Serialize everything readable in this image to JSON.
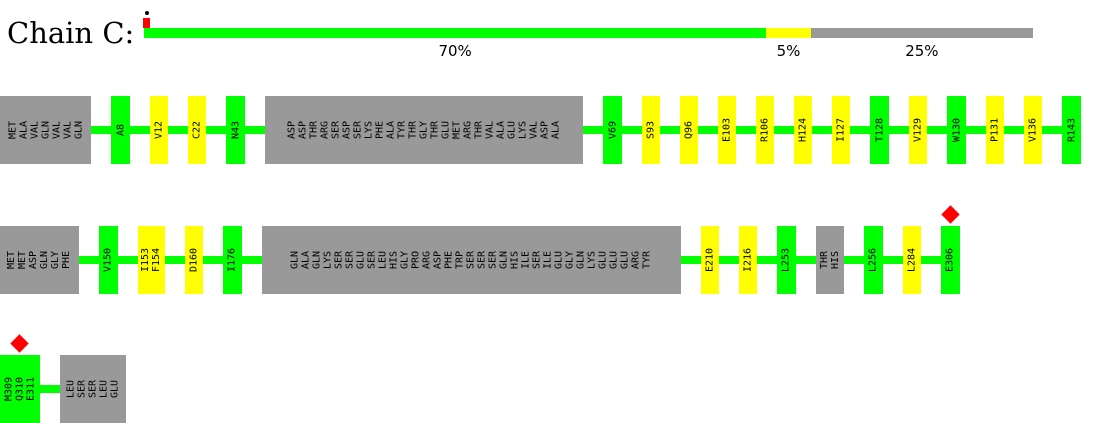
{
  "chain": {
    "label": "Chain C:",
    "summary": [
      {
        "key": "green",
        "fraction": 0.7,
        "label": "70%",
        "color": "#00ff00"
      },
      {
        "key": "yellow",
        "fraction": 0.05,
        "label": "5%",
        "color": "#ffff00"
      },
      {
        "key": "gray",
        "fraction": 0.25,
        "label": "25%",
        "color": "#999999"
      }
    ]
  },
  "colors": {
    "green": "#00ff00",
    "yellow": "#ffff00",
    "gray": "#999999",
    "marker": "#ff0000"
  },
  "rows": [
    {
      "groups": [
        {
          "type": "gray",
          "residues": [
            "MET",
            "ALA",
            "VAL",
            "GLN",
            "VAL",
            "VAL",
            "GLN"
          ]
        },
        {
          "type": "green",
          "residues": [
            "A8"
          ]
        },
        {
          "type": "yellow",
          "residues": [
            "V12"
          ]
        },
        {
          "type": "yellow",
          "residues": [
            "C22"
          ]
        },
        {
          "type": "green",
          "residues": [
            "N43"
          ]
        },
        {
          "type": "gray",
          "residues": [
            "ASP",
            "ASP",
            "THR",
            "ARG",
            "SER",
            "ASP",
            "SER",
            "LYS",
            "PHE",
            "ALA",
            "TYR",
            "THR",
            "GLY",
            "THR",
            "GLU",
            "MET",
            "ARG",
            "THR",
            "VAL",
            "ALA",
            "GLU",
            "LYS",
            "VAL",
            "ASP",
            "ALA"
          ]
        },
        {
          "type": "green",
          "residues": [
            "V69"
          ]
        },
        {
          "type": "yellow",
          "residues": [
            "S93"
          ]
        },
        {
          "type": "yellow",
          "residues": [
            "Q96"
          ]
        },
        {
          "type": "yellow",
          "residues": [
            "E103"
          ]
        },
        {
          "type": "yellow",
          "residues": [
            "R106"
          ]
        },
        {
          "type": "yellow",
          "residues": [
            "H124"
          ]
        },
        {
          "type": "yellow",
          "residues": [
            "I127"
          ]
        },
        {
          "type": "green",
          "residues": [
            "T128"
          ]
        },
        {
          "type": "yellow",
          "residues": [
            "V129"
          ]
        },
        {
          "type": "green",
          "residues": [
            "W130"
          ]
        },
        {
          "type": "yellow",
          "residues": [
            "P131"
          ]
        },
        {
          "type": "yellow",
          "residues": [
            "V136"
          ]
        },
        {
          "type": "green",
          "residues": [
            "R143"
          ]
        }
      ]
    },
    {
      "groups": [
        {
          "type": "gray",
          "residues": [
            "MET",
            "MET",
            "ASP",
            "GLN",
            "GLY",
            "PHE"
          ]
        },
        {
          "type": "green",
          "residues": [
            "V150"
          ]
        },
        {
          "type": "yellow",
          "residues": [
            "I153",
            "F154"
          ]
        },
        {
          "type": "yellow",
          "residues": [
            "D160"
          ]
        },
        {
          "type": "green",
          "residues": [
            "I176"
          ]
        },
        {
          "type": "gray",
          "residues": [
            "GLN",
            "ALA",
            "GLN",
            "LYS",
            "SER",
            "SER",
            "GLU",
            "SER",
            "LEU",
            "HIS",
            "GLY",
            "PRO",
            "ARG",
            "ASP",
            "PHE",
            "TRP",
            "SER",
            "SER",
            "SER",
            "GLN",
            "HIS",
            "ILE",
            "SER",
            "ILE",
            "GLU",
            "GLY",
            "GLN",
            "LYS",
            "GLU",
            "GLU",
            "GLU",
            "ARG",
            "TYR"
          ]
        },
        {
          "type": "yellow",
          "residues": [
            "E210"
          ]
        },
        {
          "type": "yellow",
          "residues": [
            "I216"
          ]
        },
        {
          "type": "green",
          "residues": [
            "L253"
          ]
        },
        {
          "type": "gray",
          "residues": [
            "THR",
            "HIS"
          ]
        },
        {
          "type": "green",
          "residues": [
            "L256"
          ]
        },
        {
          "type": "yellow",
          "residues": [
            "L284"
          ]
        },
        {
          "type": "green",
          "residues": [
            "E306"
          ],
          "marker": true
        }
      ]
    },
    {
      "groups": [
        {
          "type": "green",
          "residues": [
            "M309",
            "Q310",
            "E311"
          ],
          "marker": true
        },
        {
          "type": "gray",
          "residues": [
            "LEU",
            "SER",
            "SER",
            "LEU",
            "GLU"
          ]
        }
      ]
    }
  ]
}
